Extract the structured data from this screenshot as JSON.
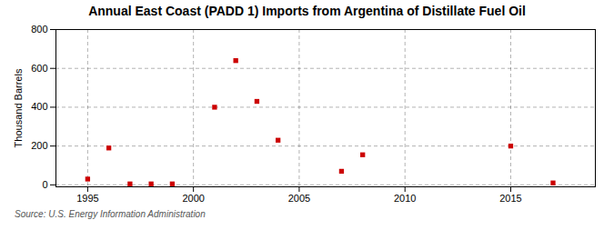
{
  "chart_data": {
    "type": "scatter",
    "title": "Annual East Coast (PADD 1) Imports from Argentina of Distillate Fuel Oil",
    "ylabel": "Thousand Barrels",
    "annotations": [
      "Source: U.S. Energy Information Administration"
    ],
    "x": [
      1995,
      1996,
      1997,
      1998,
      1999,
      2001,
      2002,
      2003,
      2004,
      2007,
      2008,
      2015,
      2017
    ],
    "values": [
      30,
      190,
      5,
      5,
      5,
      400,
      640,
      430,
      230,
      70,
      155,
      200,
      10
    ],
    "color": "#cc0000",
    "marker": "square",
    "xlim": [
      1993.5,
      2019
    ],
    "xticks": [
      1995,
      2000,
      2005,
      2010,
      2015
    ],
    "ylim": [
      -10,
      800
    ],
    "yticks": [
      0,
      200,
      400,
      600,
      800
    ],
    "grid": true
  }
}
